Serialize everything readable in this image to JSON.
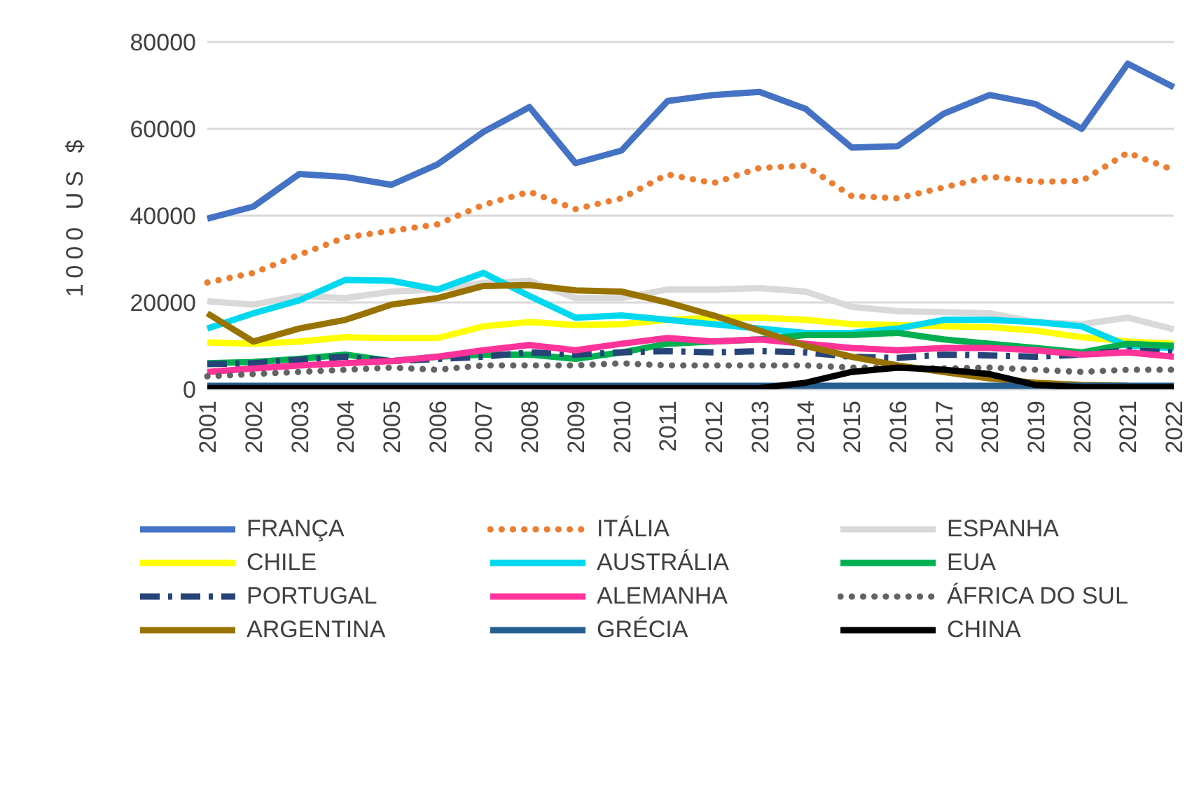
{
  "chart_data": {
    "type": "line",
    "ylabel": "1000 US $",
    "categories": [
      "2001",
      "2002",
      "2003",
      "2004",
      "2005",
      "2006",
      "2007",
      "2008",
      "2009",
      "2010",
      "2011",
      "2012",
      "2013",
      "2014",
      "2015",
      "2016",
      "2017",
      "2018",
      "2019",
      "2020",
      "2021",
      "2022"
    ],
    "ylim": [
      0,
      80000
    ],
    "yticks": [
      0,
      20000,
      40000,
      60000,
      80000
    ],
    "grid": "y",
    "legend": "bottom",
    "marker": "none",
    "series": [
      {
        "name": "FRANÇA",
        "color": "#4472c4",
        "line_style": "solid",
        "values": [
          39300,
          42100,
          49600,
          48900,
          47100,
          51800,
          59300,
          65000,
          52100,
          55000,
          66400,
          67800,
          68500,
          64600,
          55700,
          56000,
          63500,
          67800,
          65700,
          60000,
          75000,
          69600
        ]
      },
      {
        "name": "ITÁLIA",
        "color": "#ed7d31",
        "line_style": "dotted",
        "values": [
          24600,
          26800,
          31000,
          35000,
          36500,
          38000,
          42500,
          45500,
          41500,
          44000,
          49500,
          47500,
          51000,
          51500,
          44500,
          44000,
          46500,
          49000,
          47800,
          48000,
          54500,
          50500
        ]
      },
      {
        "name": "ESPANHA",
        "color": "#d9d9d9",
        "line_style": "solid",
        "values": [
          20300,
          19500,
          21500,
          21000,
          22500,
          23000,
          24500,
          25000,
          21000,
          21000,
          23000,
          23000,
          23300,
          22500,
          19000,
          18000,
          17800,
          17500,
          15500,
          15000,
          16500,
          13800
        ]
      },
      {
        "name": "CHILE",
        "color": "#ffff00",
        "line_style": "solid",
        "values": [
          10800,
          10500,
          11000,
          12000,
          11800,
          11800,
          14500,
          15500,
          14800,
          15000,
          16000,
          16500,
          16500,
          16000,
          15000,
          14800,
          14500,
          14300,
          13500,
          12000,
          11000,
          10500
        ]
      },
      {
        "name": "AUSTRÁLIA",
        "color": "#00d8f0",
        "line_style": "solid",
        "values": [
          14000,
          17500,
          20500,
          25200,
          25000,
          23000,
          26800,
          21500,
          16500,
          17000,
          16000,
          15000,
          14000,
          13000,
          13000,
          14000,
          16000,
          16000,
          15500,
          14500,
          10000,
          9500
        ]
      },
      {
        "name": "EUA",
        "color": "#00b050",
        "line_style": "solid",
        "values": [
          6000,
          6300,
          7000,
          8000,
          6500,
          7500,
          8000,
          8000,
          7000,
          8500,
          10500,
          11000,
          11500,
          12500,
          12500,
          13000,
          11500,
          10500,
          9500,
          8500,
          10500,
          10000
        ]
      },
      {
        "name": "PORTUGAL",
        "color": "#264478",
        "line_style": "dashed",
        "values": [
          5800,
          6000,
          6800,
          7500,
          6500,
          7000,
          7500,
          8500,
          8000,
          8500,
          8800,
          8500,
          8800,
          8500,
          7500,
          7200,
          8000,
          7800,
          7500,
          8000,
          9000,
          8500
        ]
      },
      {
        "name": "ALEMANHA",
        "color": "#ff3399",
        "line_style": "solid",
        "values": [
          4000,
          4800,
          5500,
          6000,
          6500,
          7500,
          9000,
          10200,
          9000,
          10500,
          11800,
          11000,
          11500,
          10500,
          9500,
          9000,
          9500,
          9500,
          9000,
          8000,
          8500,
          7500
        ]
      },
      {
        "name": "ÁFRICA DO SUL",
        "color": "#636363",
        "line_style": "dotted",
        "values": [
          3000,
          3500,
          4000,
          4500,
          5000,
          4500,
          5500,
          5500,
          5500,
          6000,
          5500,
          5500,
          5500,
          5500,
          5000,
          5000,
          4800,
          5000,
          4500,
          4000,
          4500,
          4500
        ]
      },
      {
        "name": "ARGENTINA",
        "color": "#997300",
        "line_style": "solid",
        "values": [
          17500,
          11000,
          14000,
          16000,
          19500,
          21000,
          23800,
          24000,
          22800,
          22500,
          20000,
          17000,
          13500,
          10000,
          7500,
          5500,
          4000,
          2500,
          1500,
          1000,
          800,
          null
        ]
      },
      {
        "name": "GRÉCIA",
        "color": "#255e91",
        "line_style": "solid",
        "values": [
          800,
          800,
          800,
          800,
          800,
          800,
          800,
          800,
          800,
          800,
          800,
          800,
          800,
          800,
          800,
          800,
          800,
          800,
          800,
          800,
          800,
          800
        ]
      },
      {
        "name": "CHINA",
        "color": "#000000",
        "line_style": "solid",
        "values": [
          300,
          300,
          300,
          300,
          300,
          300,
          300,
          300,
          300,
          300,
          300,
          300,
          300,
          1500,
          4000,
          5000,
          4500,
          3500,
          1000,
          500,
          500,
          500
        ]
      }
    ]
  }
}
